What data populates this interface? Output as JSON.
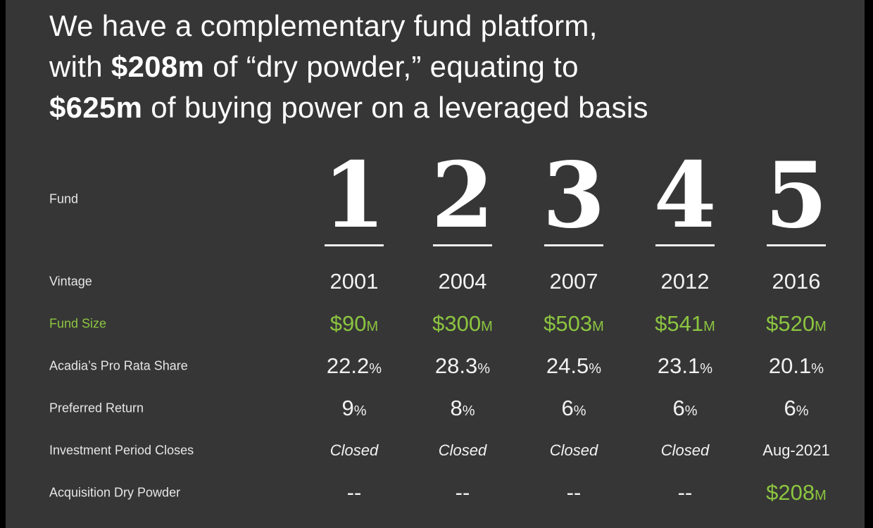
{
  "headline": {
    "line1": "We have a complementary fund platform,",
    "line2_pre": "with ",
    "line2_bold": "$208m",
    "line2_post": " of “dry powder,” equating to",
    "line3_bold": "$625m",
    "line3_post": " of buying power on a leveraged basis"
  },
  "row_labels": {
    "fund": "Fund",
    "vintage": "Vintage",
    "fund_size": "Fund Size",
    "pro_rata": "Acadia’s Pro Rata Share",
    "preferred_return": "Preferred Return",
    "investment_period": "Investment Period Closes",
    "dry_powder": "Acquisition Dry Powder"
  },
  "colors": {
    "background": "#363636",
    "accent": "#8cc540",
    "text": "#ffffff"
  },
  "funds": [
    {
      "fund": "1",
      "vintage": "2001",
      "size": "$90",
      "size_unit": "M",
      "pro_rata": "22.2",
      "pro_rata_unit": "%",
      "pref": "9",
      "pref_unit": "%",
      "period": "Closed",
      "dry": "--",
      "dry_unit": ""
    },
    {
      "fund": "2",
      "vintage": "2004",
      "size": "$300",
      "size_unit": "M",
      "pro_rata": "28.3",
      "pro_rata_unit": "%",
      "pref": "8",
      "pref_unit": "%",
      "period": "Closed",
      "dry": "--",
      "dry_unit": ""
    },
    {
      "fund": "3",
      "vintage": "2007",
      "size": "$503",
      "size_unit": "M",
      "pro_rata": "24.5",
      "pro_rata_unit": "%",
      "pref": "6",
      "pref_unit": "%",
      "period": "Closed",
      "dry": "--",
      "dry_unit": ""
    },
    {
      "fund": "4",
      "vintage": "2012",
      "size": "$541",
      "size_unit": "M",
      "pro_rata": "23.1",
      "pro_rata_unit": "%",
      "pref": "6",
      "pref_unit": "%",
      "period": "Closed",
      "dry": "--",
      "dry_unit": ""
    },
    {
      "fund": "5",
      "vintage": "2016",
      "size": "$520",
      "size_unit": "M",
      "pro_rata": "20.1",
      "pro_rata_unit": "%",
      "pref": "6",
      "pref_unit": "%",
      "period": "Aug-2021",
      "dry": "$208",
      "dry_unit": "M"
    }
  ]
}
